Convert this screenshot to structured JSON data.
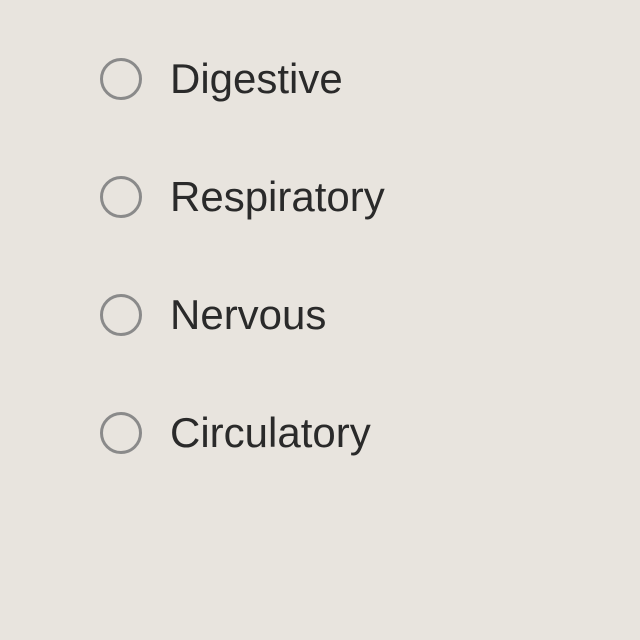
{
  "options": {
    "items": [
      {
        "label": "Digestive"
      },
      {
        "label": "Respiratory"
      },
      {
        "label": "Nervous"
      },
      {
        "label": "Circulatory"
      }
    ],
    "radio_border_color": "#8a8a8a",
    "text_color": "#2a2a2a",
    "background_color": "#e8e4de",
    "font_size": 42
  }
}
